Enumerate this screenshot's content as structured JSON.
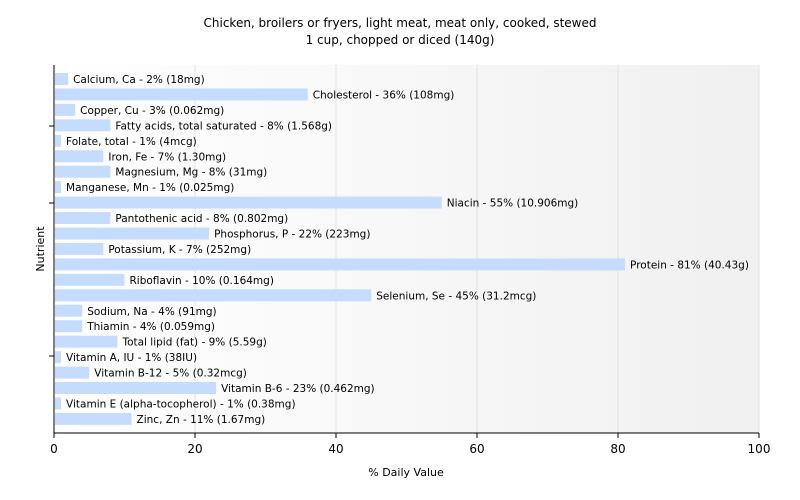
{
  "chart_data": {
    "type": "bar",
    "orientation": "horizontal",
    "title": "Chicken, broilers or fryers, light meat, meat only, cooked, stewed",
    "subtitle": "1 cup, chopped or diced (140g)",
    "xlabel": "% Daily Value",
    "ylabel": "Nutrient",
    "xlim": [
      0,
      100
    ],
    "xticks": [
      0,
      20,
      40,
      60,
      80,
      100
    ],
    "grid": true,
    "bar_color": "#c6dcff",
    "bars": [
      {
        "value": 2,
        "label": "Calcium, Ca - 2% (18mg)"
      },
      {
        "value": 36,
        "label": "Cholesterol - 36% (108mg)"
      },
      {
        "value": 3,
        "label": "Copper, Cu - 3% (0.062mg)"
      },
      {
        "value": 8,
        "label": "Fatty acids, total saturated - 8% (1.568g)"
      },
      {
        "value": 1,
        "label": "Folate, total - 1% (4mcg)"
      },
      {
        "value": 7,
        "label": "Iron, Fe - 7% (1.30mg)"
      },
      {
        "value": 8,
        "label": "Magnesium, Mg - 8% (31mg)"
      },
      {
        "value": 1,
        "label": "Manganese, Mn - 1% (0.025mg)"
      },
      {
        "value": 55,
        "label": "Niacin - 55% (10.906mg)"
      },
      {
        "value": 8,
        "label": "Pantothenic acid - 8% (0.802mg)"
      },
      {
        "value": 22,
        "label": "Phosphorus, P - 22% (223mg)"
      },
      {
        "value": 7,
        "label": "Potassium, K - 7% (252mg)"
      },
      {
        "value": 81,
        "label": "Protein - 81% (40.43g)"
      },
      {
        "value": 10,
        "label": "Riboflavin - 10% (0.164mg)"
      },
      {
        "value": 45,
        "label": "Selenium, Se - 45% (31.2mcg)"
      },
      {
        "value": 4,
        "label": "Sodium, Na - 4% (91mg)"
      },
      {
        "value": 4,
        "label": "Thiamin - 4% (0.059mg)"
      },
      {
        "value": 9,
        "label": "Total lipid (fat) - 9% (5.59g)"
      },
      {
        "value": 1,
        "label": "Vitamin A, IU - 1% (38IU)"
      },
      {
        "value": 5,
        "label": "Vitamin B-12 - 5% (0.32mcg)"
      },
      {
        "value": 23,
        "label": "Vitamin B-6 - 23% (0.462mg)"
      },
      {
        "value": 1,
        "label": "Vitamin E (alpha-tocopherol) - 1% (0.38mg)"
      },
      {
        "value": 11,
        "label": "Zinc, Zn - 11% (1.67mg)"
      }
    ]
  }
}
